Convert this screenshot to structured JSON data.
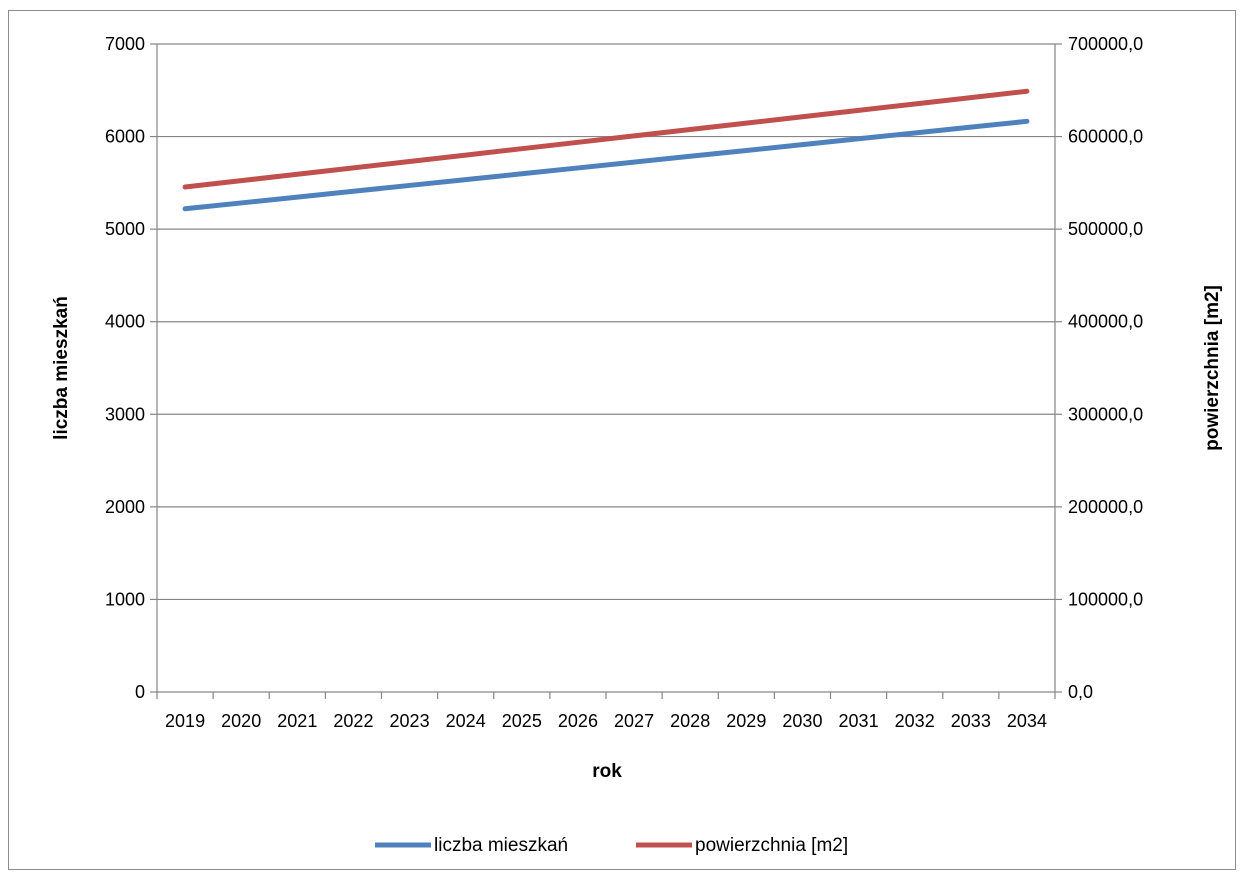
{
  "chart_data": {
    "type": "line",
    "title": "",
    "xlabel": "rok",
    "ylabel": "liczba mieszkań",
    "y2label": "powierzchnia [m2]",
    "categories": [
      "2019",
      "2020",
      "2021",
      "2022",
      "2023",
      "2024",
      "2025",
      "2026",
      "2027",
      "2028",
      "2029",
      "2030",
      "2031",
      "2032",
      "2033",
      "2034"
    ],
    "ylim": [
      0,
      7000
    ],
    "y2lim": [
      0,
      700000
    ],
    "yticks": [
      "0",
      "1000",
      "2000",
      "3000",
      "4000",
      "5000",
      "6000",
      "7000"
    ],
    "y2ticks": [
      "0,0",
      "100000,0",
      "200000,0",
      "300000,0",
      "400000,0",
      "500000,0",
      "600000,0",
      "700000,0"
    ],
    "grid": true,
    "legend_position": "bottom",
    "series": [
      {
        "name": "liczba mieszkań",
        "axis": "left",
        "color": "#4f81bd",
        "values": [
          5220,
          5283,
          5346,
          5409,
          5472,
          5535,
          5598,
          5661,
          5724,
          5787,
          5850,
          5913,
          5976,
          6039,
          6102,
          6165
        ]
      },
      {
        "name": "powierzchnia [m2]",
        "axis": "right",
        "color": "#c0504d",
        "values": [
          545500,
          552400,
          559300,
          566200,
          573100,
          580000,
          586900,
          593800,
          600700,
          607600,
          614500,
          621400,
          628300,
          635200,
          642100,
          649000
        ]
      }
    ]
  }
}
